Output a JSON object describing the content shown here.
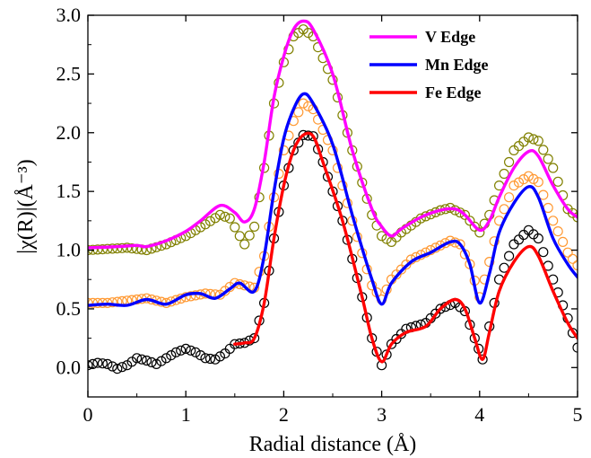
{
  "chart_data": {
    "type": "line",
    "xlabel": "Radial distance (Å)",
    "ylabel": "|χ(R)|(Å⁻³)",
    "xlim": [
      0,
      5
    ],
    "ylim": [
      -0.25,
      3.0
    ],
    "xticks": [
      0,
      1,
      2,
      3,
      4,
      5
    ],
    "xtick_labels": [
      "0",
      "1",
      "2",
      "3",
      "4",
      "5"
    ],
    "yticks": [
      0.0,
      0.5,
      1.0,
      1.5,
      2.0,
      2.5,
      3.0
    ],
    "ytick_labels": [
      "0.0",
      "0.5",
      "1.0",
      "1.5",
      "2.0",
      "2.5",
      "3.0"
    ],
    "legend_position": "top-right",
    "fit_series": [
      {
        "name": "V Edge",
        "color": "#ff00ff",
        "points": [
          [
            0,
            1.02
          ],
          [
            0.3,
            1.03
          ],
          [
            0.5,
            1.04
          ],
          [
            0.6,
            1.03
          ],
          [
            0.8,
            1.08
          ],
          [
            1.0,
            1.16
          ],
          [
            1.15,
            1.25
          ],
          [
            1.35,
            1.38
          ],
          [
            1.5,
            1.32
          ],
          [
            1.6,
            1.24
          ],
          [
            1.7,
            1.35
          ],
          [
            1.8,
            1.75
          ],
          [
            1.9,
            2.3
          ],
          [
            2.0,
            2.65
          ],
          [
            2.1,
            2.88
          ],
          [
            2.2,
            2.95
          ],
          [
            2.3,
            2.88
          ],
          [
            2.5,
            2.5
          ],
          [
            2.7,
            1.85
          ],
          [
            2.9,
            1.35
          ],
          [
            3.0,
            1.2
          ],
          [
            3.1,
            1.12
          ],
          [
            3.2,
            1.18
          ],
          [
            3.4,
            1.28
          ],
          [
            3.6,
            1.34
          ],
          [
            3.75,
            1.35
          ],
          [
            3.85,
            1.3
          ],
          [
            4.0,
            1.17
          ],
          [
            4.1,
            1.25
          ],
          [
            4.2,
            1.45
          ],
          [
            4.35,
            1.7
          ],
          [
            4.5,
            1.84
          ],
          [
            4.6,
            1.8
          ],
          [
            4.75,
            1.55
          ],
          [
            4.9,
            1.35
          ],
          [
            5.0,
            1.28
          ]
        ]
      },
      {
        "name": "Mn Edge",
        "color": "#0000ff",
        "points": [
          [
            0,
            0.53
          ],
          [
            0.2,
            0.54
          ],
          [
            0.4,
            0.53
          ],
          [
            0.6,
            0.58
          ],
          [
            0.8,
            0.54
          ],
          [
            1.0,
            0.62
          ],
          [
            1.15,
            0.63
          ],
          [
            1.3,
            0.59
          ],
          [
            1.45,
            0.67
          ],
          [
            1.55,
            0.72
          ],
          [
            1.7,
            0.65
          ],
          [
            1.8,
            0.95
          ],
          [
            1.9,
            1.5
          ],
          [
            2.0,
            1.95
          ],
          [
            2.1,
            2.2
          ],
          [
            2.2,
            2.33
          ],
          [
            2.3,
            2.25
          ],
          [
            2.5,
            1.9
          ],
          [
            2.7,
            1.3
          ],
          [
            2.9,
            0.75
          ],
          [
            3.0,
            0.54
          ],
          [
            3.1,
            0.72
          ],
          [
            3.3,
            0.9
          ],
          [
            3.5,
            0.98
          ],
          [
            3.7,
            1.07
          ],
          [
            3.8,
            1.05
          ],
          [
            3.9,
            0.88
          ],
          [
            4.0,
            0.55
          ],
          [
            4.1,
            0.8
          ],
          [
            4.2,
            1.15
          ],
          [
            4.35,
            1.4
          ],
          [
            4.5,
            1.54
          ],
          [
            4.6,
            1.45
          ],
          [
            4.75,
            1.1
          ],
          [
            4.9,
            0.88
          ],
          [
            5.0,
            0.77
          ]
        ]
      },
      {
        "name": "Fe Edge",
        "color": "#ff0000",
        "points": [
          [
            1.5,
            0.2
          ],
          [
            1.6,
            0.21
          ],
          [
            1.7,
            0.25
          ],
          [
            1.8,
            0.55
          ],
          [
            1.9,
            1.1
          ],
          [
            2.0,
            1.55
          ],
          [
            2.1,
            1.85
          ],
          [
            2.2,
            1.98
          ],
          [
            2.3,
            1.97
          ],
          [
            2.4,
            1.75
          ],
          [
            2.6,
            1.25
          ],
          [
            2.8,
            0.6
          ],
          [
            2.9,
            0.25
          ],
          [
            3.0,
            0.05
          ],
          [
            3.1,
            0.2
          ],
          [
            3.25,
            0.3
          ],
          [
            3.45,
            0.35
          ],
          [
            3.6,
            0.5
          ],
          [
            3.75,
            0.58
          ],
          [
            3.85,
            0.5
          ],
          [
            3.95,
            0.25
          ],
          [
            4.03,
            0.07
          ],
          [
            4.1,
            0.3
          ],
          [
            4.2,
            0.65
          ],
          [
            4.35,
            0.9
          ],
          [
            4.5,
            1.03
          ],
          [
            4.6,
            0.95
          ],
          [
            4.75,
            0.65
          ],
          [
            4.9,
            0.38
          ],
          [
            5.0,
            0.25
          ]
        ]
      }
    ],
    "data_series": [
      {
        "name": "V Edge data",
        "color": "#808000",
        "points": [
          [
            0,
            1.0
          ],
          [
            0.2,
            1.01
          ],
          [
            0.4,
            1.02
          ],
          [
            0.6,
            1.0
          ],
          [
            0.8,
            1.05
          ],
          [
            1.0,
            1.12
          ],
          [
            1.2,
            1.22
          ],
          [
            1.35,
            1.3
          ],
          [
            1.45,
            1.27
          ],
          [
            1.55,
            1.12
          ],
          [
            1.6,
            1.05
          ],
          [
            1.7,
            1.2
          ],
          [
            1.8,
            1.7
          ],
          [
            1.9,
            2.25
          ],
          [
            2.0,
            2.6
          ],
          [
            2.1,
            2.82
          ],
          [
            2.2,
            2.88
          ],
          [
            2.3,
            2.82
          ],
          [
            2.5,
            2.45
          ],
          [
            2.7,
            1.85
          ],
          [
            2.9,
            1.3
          ],
          [
            3.0,
            1.12
          ],
          [
            3.1,
            1.07
          ],
          [
            3.2,
            1.15
          ],
          [
            3.4,
            1.27
          ],
          [
            3.6,
            1.34
          ],
          [
            3.7,
            1.36
          ],
          [
            3.85,
            1.3
          ],
          [
            4.0,
            1.15
          ],
          [
            4.1,
            1.3
          ],
          [
            4.2,
            1.55
          ],
          [
            4.35,
            1.85
          ],
          [
            4.5,
            1.96
          ],
          [
            4.6,
            1.93
          ],
          [
            4.75,
            1.7
          ],
          [
            4.9,
            1.35
          ],
          [
            5.0,
            1.28
          ]
        ]
      },
      {
        "name": "Mn Edge data",
        "color": "#ff9933",
        "points": [
          [
            0,
            0.55
          ],
          [
            0.2,
            0.55
          ],
          [
            0.4,
            0.57
          ],
          [
            0.6,
            0.59
          ],
          [
            0.8,
            0.55
          ],
          [
            1.0,
            0.6
          ],
          [
            1.2,
            0.63
          ],
          [
            1.35,
            0.62
          ],
          [
            1.5,
            0.72
          ],
          [
            1.6,
            0.7
          ],
          [
            1.7,
            0.68
          ],
          [
            1.8,
            0.95
          ],
          [
            1.9,
            1.45
          ],
          [
            2.0,
            1.85
          ],
          [
            2.1,
            2.1
          ],
          [
            2.2,
            2.25
          ],
          [
            2.3,
            2.2
          ],
          [
            2.5,
            1.85
          ],
          [
            2.7,
            1.25
          ],
          [
            2.9,
            0.7
          ],
          [
            3.0,
            0.58
          ],
          [
            3.1,
            0.75
          ],
          [
            3.3,
            0.92
          ],
          [
            3.5,
            1.0
          ],
          [
            3.7,
            1.08
          ],
          [
            3.8,
            1.05
          ],
          [
            3.9,
            0.88
          ],
          [
            4.0,
            0.6
          ],
          [
            4.1,
            0.9
          ],
          [
            4.2,
            1.25
          ],
          [
            4.35,
            1.55
          ],
          [
            4.5,
            1.63
          ],
          [
            4.6,
            1.58
          ],
          [
            4.75,
            1.25
          ],
          [
            4.9,
            0.98
          ],
          [
            5.0,
            0.87
          ]
        ]
      },
      {
        "name": "Fe Edge data",
        "color": "#000000",
        "points": [
          [
            0,
            0.02
          ],
          [
            0.1,
            0.04
          ],
          [
            0.2,
            0.03
          ],
          [
            0.3,
            -0.01
          ],
          [
            0.4,
            0.02
          ],
          [
            0.5,
            0.08
          ],
          [
            0.6,
            0.06
          ],
          [
            0.7,
            0.03
          ],
          [
            0.8,
            0.08
          ],
          [
            0.9,
            0.13
          ],
          [
            1.0,
            0.16
          ],
          [
            1.1,
            0.13
          ],
          [
            1.2,
            0.08
          ],
          [
            1.3,
            0.07
          ],
          [
            1.4,
            0.12
          ],
          [
            1.5,
            0.2
          ],
          [
            1.6,
            0.21
          ],
          [
            1.7,
            0.25
          ],
          [
            1.8,
            0.55
          ],
          [
            1.9,
            1.1
          ],
          [
            2.0,
            1.55
          ],
          [
            2.1,
            1.85
          ],
          [
            2.2,
            1.98
          ],
          [
            2.3,
            1.97
          ],
          [
            2.4,
            1.75
          ],
          [
            2.6,
            1.25
          ],
          [
            2.8,
            0.6
          ],
          [
            2.9,
            0.25
          ],
          [
            3.0,
            0.02
          ],
          [
            3.1,
            0.2
          ],
          [
            3.25,
            0.33
          ],
          [
            3.45,
            0.38
          ],
          [
            3.6,
            0.5
          ],
          [
            3.75,
            0.55
          ],
          [
            3.85,
            0.48
          ],
          [
            3.95,
            0.25
          ],
          [
            4.03,
            0.07
          ],
          [
            4.1,
            0.35
          ],
          [
            4.2,
            0.75
          ],
          [
            4.35,
            1.05
          ],
          [
            4.5,
            1.17
          ],
          [
            4.6,
            1.1
          ],
          [
            4.75,
            0.75
          ],
          [
            4.9,
            0.42
          ],
          [
            5.0,
            0.17
          ]
        ]
      }
    ]
  }
}
